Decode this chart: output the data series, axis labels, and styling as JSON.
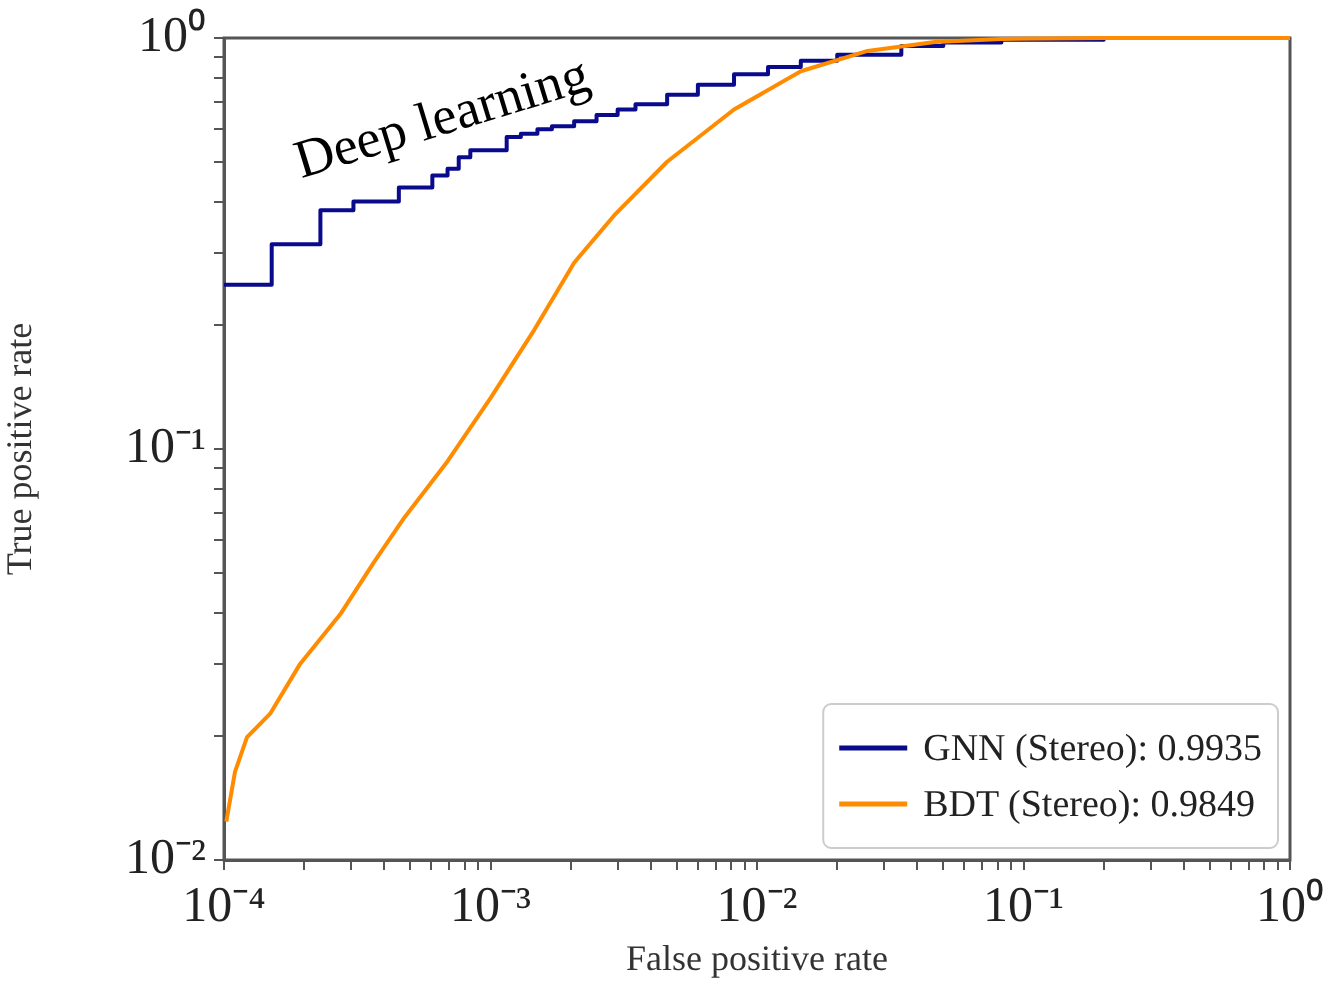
{
  "chart_data": {
    "type": "line",
    "xlabel": "False positive rate",
    "ylabel": "True positive rate",
    "log": "xy",
    "xlim": [
      0.0001,
      1
    ],
    "ylim": [
      0.01,
      1
    ],
    "xticks": [
      {
        "value": 0.0001,
        "label": "10⁻⁴"
      },
      {
        "value": 0.0002,
        "label": null
      },
      {
        "value": 0.0003,
        "label": null
      },
      {
        "value": 0.0004,
        "label": null
      },
      {
        "value": 0.0005,
        "label": null
      },
      {
        "value": 0.0006,
        "label": null
      },
      {
        "value": 0.0007,
        "label": null
      },
      {
        "value": 0.0008,
        "label": null
      },
      {
        "value": 0.0009,
        "label": null
      },
      {
        "value": 0.001,
        "label": "10⁻³"
      },
      {
        "value": 0.002,
        "label": null
      },
      {
        "value": 0.003,
        "label": null
      },
      {
        "value": 0.004,
        "label": null
      },
      {
        "value": 0.005,
        "label": null
      },
      {
        "value": 0.006,
        "label": null
      },
      {
        "value": 0.007,
        "label": null
      },
      {
        "value": 0.008,
        "label": null
      },
      {
        "value": 0.009,
        "label": null
      },
      {
        "value": 0.01,
        "label": "10⁻²"
      },
      {
        "value": 0.02,
        "label": null
      },
      {
        "value": 0.03,
        "label": null
      },
      {
        "value": 0.04,
        "label": null
      },
      {
        "value": 0.05,
        "label": null
      },
      {
        "value": 0.06,
        "label": null
      },
      {
        "value": 0.07,
        "label": null
      },
      {
        "value": 0.08,
        "label": null
      },
      {
        "value": 0.09,
        "label": null
      },
      {
        "value": 0.1,
        "label": "10⁻¹"
      },
      {
        "value": 0.2,
        "label": null
      },
      {
        "value": 0.3,
        "label": null
      },
      {
        "value": 0.4,
        "label": null
      },
      {
        "value": 0.5,
        "label": null
      },
      {
        "value": 0.6,
        "label": null
      },
      {
        "value": 0.7,
        "label": null
      },
      {
        "value": 0.8,
        "label": null
      },
      {
        "value": 0.9,
        "label": null
      },
      {
        "value": 1,
        "label": "10⁰"
      }
    ],
    "yticks": [
      {
        "value": 0.01,
        "label": "10⁻²"
      },
      {
        "value": 0.02,
        "label": null
      },
      {
        "value": 0.03,
        "label": null
      },
      {
        "value": 0.04,
        "label": null
      },
      {
        "value": 0.05,
        "label": null
      },
      {
        "value": 0.06,
        "label": null
      },
      {
        "value": 0.07,
        "label": null
      },
      {
        "value": 0.08,
        "label": null
      },
      {
        "value": 0.09,
        "label": null
      },
      {
        "value": 0.1,
        "label": "10⁻¹"
      },
      {
        "value": 0.2,
        "label": null
      },
      {
        "value": 0.3,
        "label": null
      },
      {
        "value": 0.4,
        "label": null
      },
      {
        "value": 0.5,
        "label": null
      },
      {
        "value": 0.6,
        "label": null
      },
      {
        "value": 0.7,
        "label": null
      },
      {
        "value": 0.8,
        "label": null
      },
      {
        "value": 0.9,
        "label": null
      },
      {
        "value": 1,
        "label": "10⁰"
      }
    ],
    "grid": false,
    "legend": "bottom right",
    "series": [
      {
        "name": "GNN (Stereo): 0.9935",
        "type": "step",
        "color": "#0a0a8c",
        "x": [
          0.0001,
          0.000151,
          0.00023,
          0.000306,
          0.000453,
          0.000605,
          0.00069,
          0.00076,
          0.00084,
          0.00115,
          0.0013,
          0.0015,
          0.0017,
          0.00206,
          0.0025,
          0.003,
          0.0035,
          0.0046,
          0.006,
          0.0082,
          0.011,
          0.0146,
          0.02,
          0.0348,
          0.05,
          0.0826,
          0.2,
          1
        ],
        "values": [
          0.251,
          0.315,
          0.381,
          0.4,
          0.433,
          0.463,
          0.481,
          0.513,
          0.533,
          0.574,
          0.585,
          0.6,
          0.61,
          0.627,
          0.65,
          0.67,
          0.69,
          0.728,
          0.77,
          0.816,
          0.85,
          0.88,
          0.91,
          0.956,
          0.975,
          0.99,
          1,
          1
        ]
      },
      {
        "name": "BDT (Stereo): 0.9849",
        "type": "line",
        "color": "#ff8c00",
        "x": [
          0.000102,
          0.00011,
          0.000122,
          0.000149,
          0.000193,
          0.000273,
          0.000365,
          0.000472,
          0.000687,
          0.001,
          0.00146,
          0.00206,
          0.00291,
          0.0046,
          0.0082,
          0.0146,
          0.026,
          0.0465,
          0.0826,
          0.2,
          1
        ],
        "values": [
          0.0124,
          0.0164,
          0.0199,
          0.0227,
          0.03,
          0.0396,
          0.053,
          0.0677,
          0.093,
          0.133,
          0.195,
          0.284,
          0.37,
          0.5,
          0.67,
          0.83,
          0.93,
          0.978,
          0.995,
          1,
          1
        ]
      }
    ],
    "annotations": [
      "Deep learning"
    ]
  }
}
